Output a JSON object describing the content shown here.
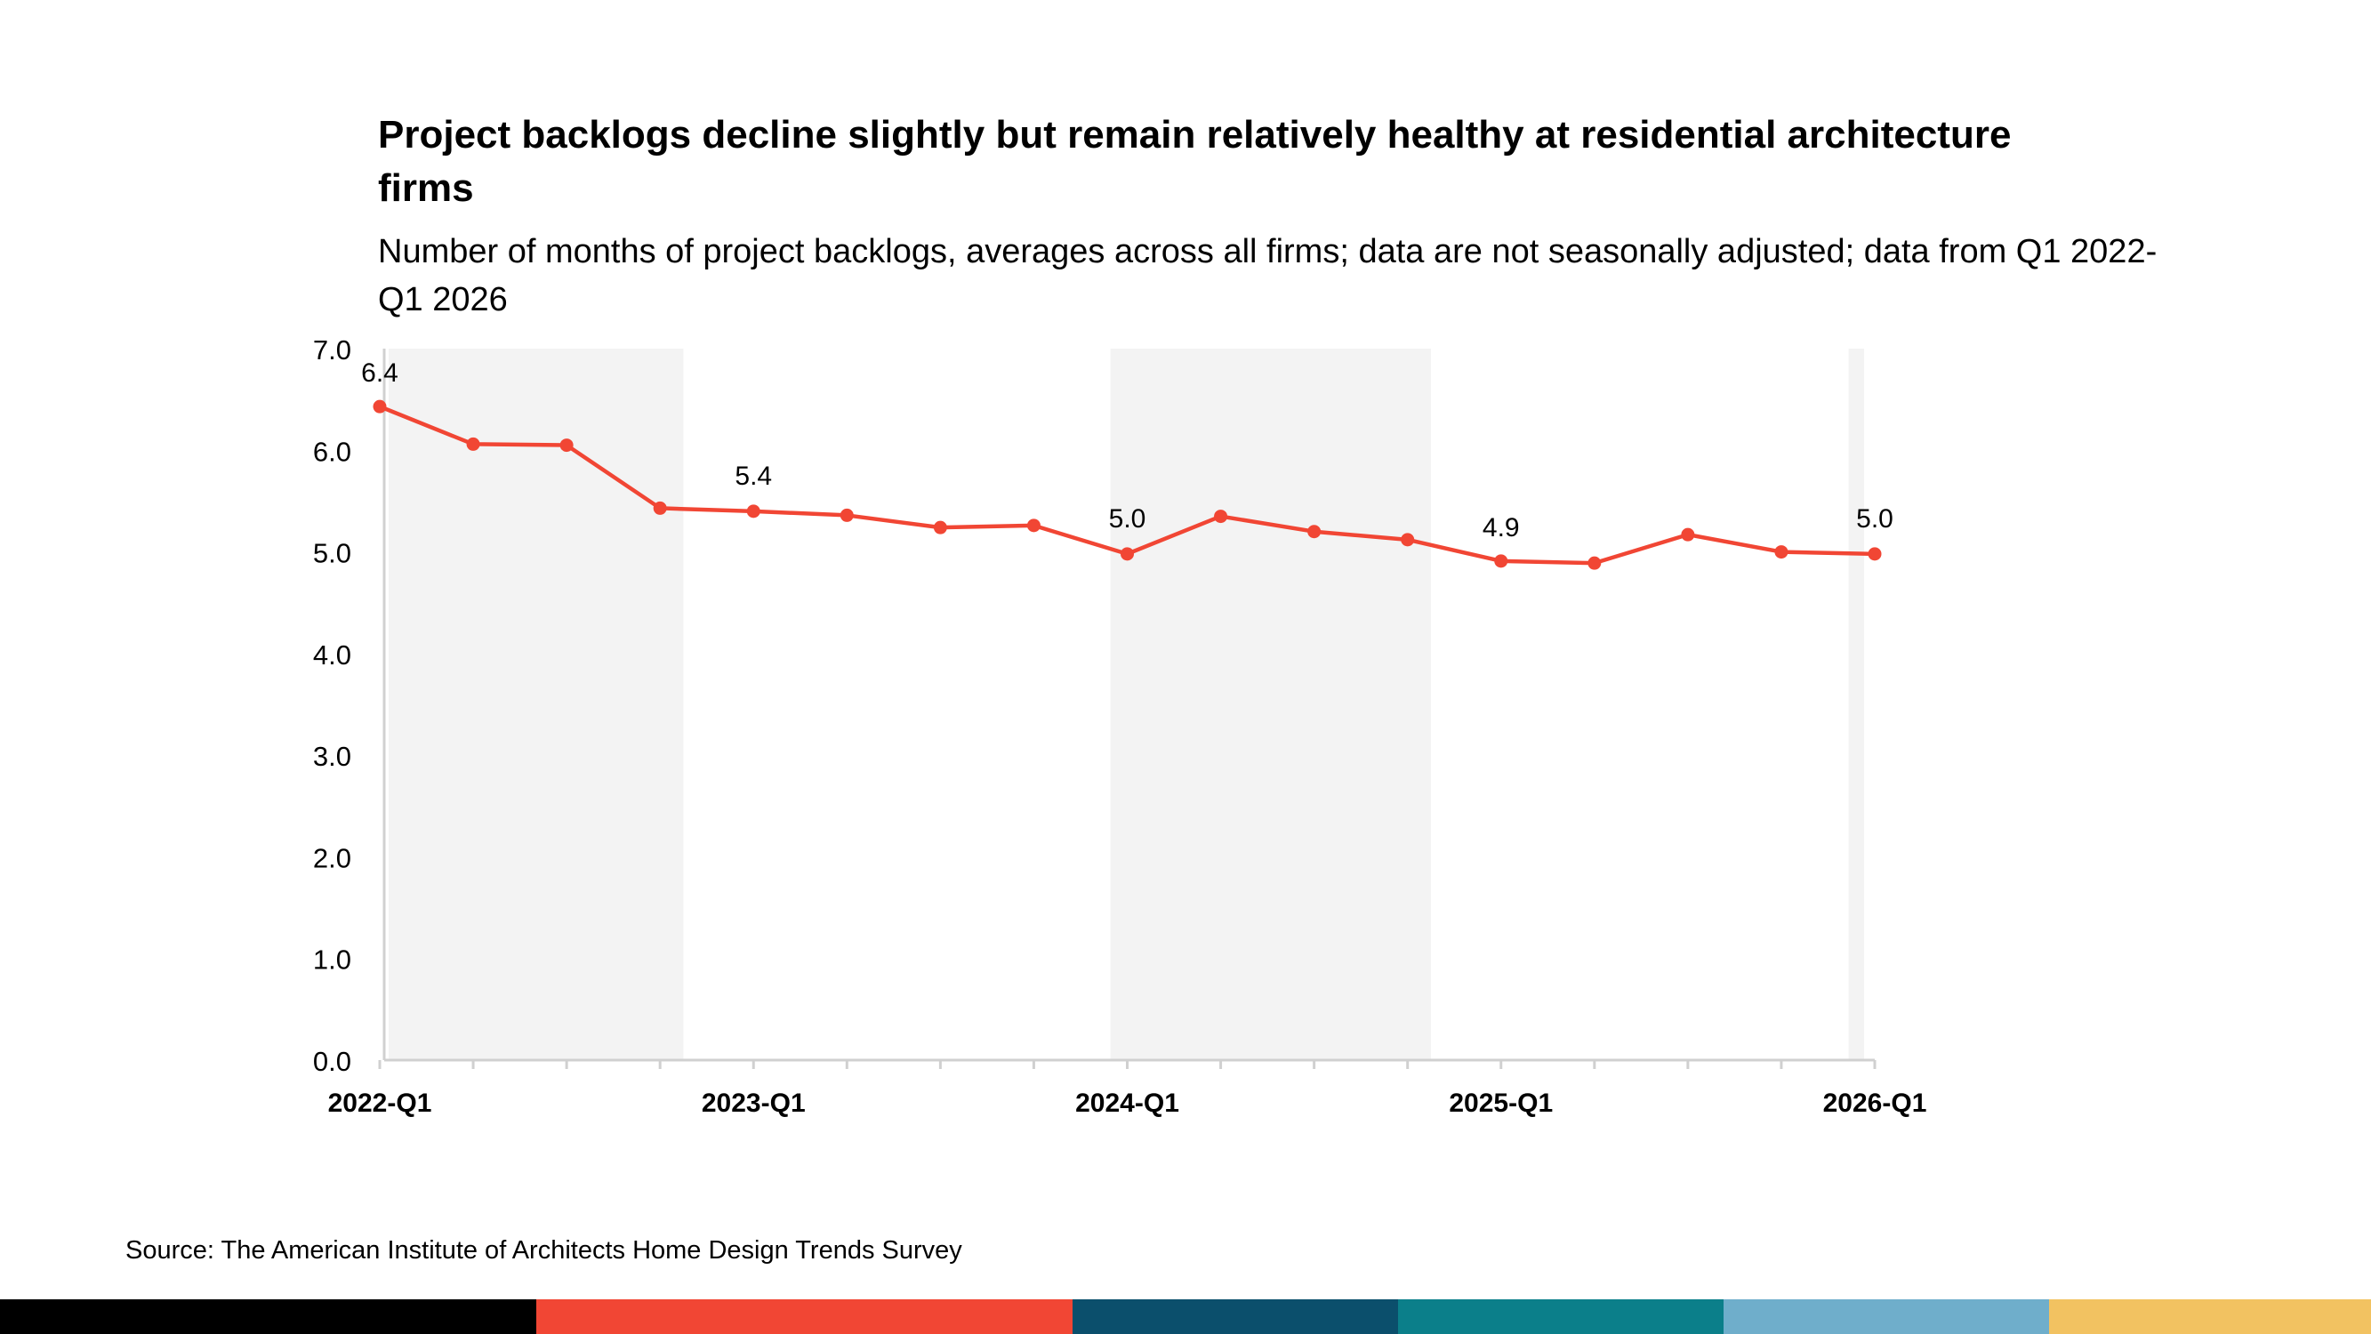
{
  "title": "Project backlogs decline slightly but remain relatively healthy at residential architecture firms",
  "subtitle": "Number of months of project backlogs, averages across all firms; data are not seasonally adjusted; data from Q1 2022-Q1 2026",
  "source": "Source: The American Institute of Architects Home Design Trends Survey",
  "colors": {
    "line": "#f14634",
    "shade": "#f3f3f3",
    "axis": "#d0d0d0"
  },
  "footer_colors": [
    "#000000",
    "#f14634",
    "#0b4f6c",
    "#0b7f8a",
    "#6faecb",
    "#f2c261"
  ],
  "chart_data": {
    "type": "line",
    "x": [
      "2022-Q1",
      "2022-Q2",
      "2022-Q3",
      "2022-Q4",
      "2023-Q1",
      "2023-Q2",
      "2023-Q3",
      "2023-Q4",
      "2024-Q1",
      "2024-Q2",
      "2024-Q3",
      "2024-Q4",
      "2025-Q1",
      "2025-Q2",
      "2025-Q3",
      "2025-Q4",
      "2026-Q1"
    ],
    "x_tick_labels": [
      "2022-Q1",
      "2023-Q1",
      "2024-Q1",
      "2025-Q1",
      "2026-Q1"
    ],
    "series": [
      {
        "values": [
          6.43,
          6.06,
          6.05,
          5.43,
          5.4,
          5.36,
          5.24,
          5.26,
          4.98,
          5.35,
          5.2,
          5.12,
          4.91,
          4.89,
          5.17,
          5.0,
          4.98
        ]
      }
    ],
    "data_labels": [
      {
        "x": "2022-Q1",
        "text": "6.4"
      },
      {
        "x": "2023-Q1",
        "text": "5.4"
      },
      {
        "x": "2024-Q1",
        "text": "5.0"
      },
      {
        "x": "2025-Q1",
        "text": "4.9"
      },
      {
        "x": "2026-Q1",
        "text": "5.0"
      }
    ],
    "shaded_years": [
      "2022",
      "2024",
      "2026"
    ],
    "ylim": [
      0,
      7
    ],
    "y_ticks": [
      "0.0",
      "1.0",
      "2.0",
      "3.0",
      "4.0",
      "5.0",
      "6.0",
      "7.0"
    ],
    "xlabel": "",
    "ylabel": "",
    "grid": false,
    "legend": "none"
  }
}
